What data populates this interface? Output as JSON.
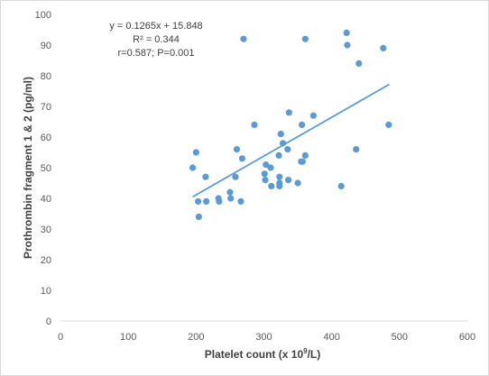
{
  "chart_data": {
    "type": "scatter",
    "title": "",
    "xlabel": "Platelet count (x 10",
    "xlabel_sup": "9",
    "xlabel_suffix": "/L)",
    "ylabel": "Prothrombin fragment 1 & 2 (pg/ml)",
    "xlim": [
      0,
      600
    ],
    "ylim": [
      0,
      100
    ],
    "x_ticks": [
      0,
      100,
      200,
      300,
      400,
      500,
      600
    ],
    "y_ticks": [
      0,
      10,
      20,
      30,
      40,
      50,
      60,
      70,
      80,
      90,
      100
    ],
    "grid": false,
    "legend": "none",
    "marker_color": "#5b9bd5",
    "trendline_color": "#5b9bd5",
    "annotations": {
      "equation": "y = 0.1265x + 15.848",
      "r_squared": "R² = 0.344",
      "stats": "r=0.587; P=0.001"
    },
    "trendline": {
      "slope": 0.1265,
      "intercept": 15.848,
      "x_range": [
        195,
        485
      ]
    },
    "points": [
      {
        "x": 195,
        "y": 50
      },
      {
        "x": 200,
        "y": 55
      },
      {
        "x": 203,
        "y": 39
      },
      {
        "x": 204,
        "y": 34
      },
      {
        "x": 214,
        "y": 47
      },
      {
        "x": 215,
        "y": 39
      },
      {
        "x": 233,
        "y": 40
      },
      {
        "x": 234,
        "y": 39
      },
      {
        "x": 250,
        "y": 42
      },
      {
        "x": 251,
        "y": 40
      },
      {
        "x": 258,
        "y": 47
      },
      {
        "x": 260,
        "y": 56
      },
      {
        "x": 266,
        "y": 39
      },
      {
        "x": 268,
        "y": 53
      },
      {
        "x": 270,
        "y": 92
      },
      {
        "x": 286,
        "y": 64
      },
      {
        "x": 301,
        "y": 48
      },
      {
        "x": 302,
        "y": 46
      },
      {
        "x": 303,
        "y": 51
      },
      {
        "x": 310,
        "y": 50
      },
      {
        "x": 311,
        "y": 44
      },
      {
        "x": 322,
        "y": 54
      },
      {
        "x": 323,
        "y": 47
      },
      {
        "x": 323,
        "y": 45
      },
      {
        "x": 323,
        "y": 44
      },
      {
        "x": 325,
        "y": 61
      },
      {
        "x": 328,
        "y": 58
      },
      {
        "x": 335,
        "y": 56
      },
      {
        "x": 336,
        "y": 46
      },
      {
        "x": 337,
        "y": 68
      },
      {
        "x": 350,
        "y": 45
      },
      {
        "x": 355,
        "y": 52
      },
      {
        "x": 356,
        "y": 64
      },
      {
        "x": 357,
        "y": 52
      },
      {
        "x": 361,
        "y": 92
      },
      {
        "x": 361,
        "y": 54
      },
      {
        "x": 373,
        "y": 67
      },
      {
        "x": 414,
        "y": 44
      },
      {
        "x": 422,
        "y": 94
      },
      {
        "x": 423,
        "y": 90
      },
      {
        "x": 436,
        "y": 56
      },
      {
        "x": 440,
        "y": 84
      },
      {
        "x": 476,
        "y": 89
      },
      {
        "x": 484,
        "y": 64
      }
    ]
  }
}
